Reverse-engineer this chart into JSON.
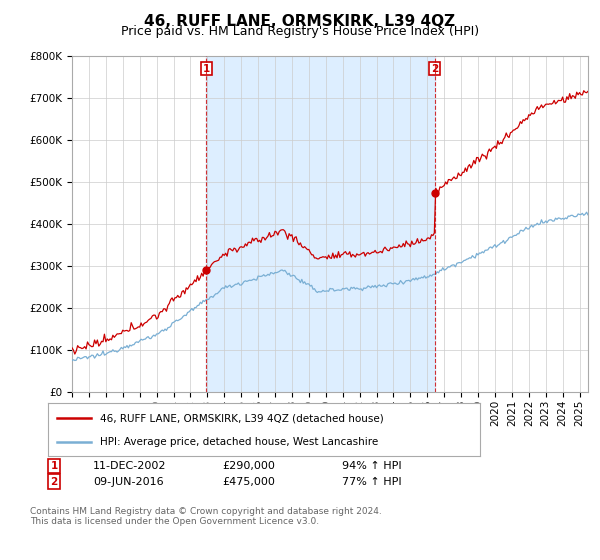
{
  "title": "46, RUFF LANE, ORMSKIRK, L39 4QZ",
  "subtitle": "Price paid vs. HM Land Registry's House Price Index (HPI)",
  "legend_property": "46, RUFF LANE, ORMSKIRK, L39 4QZ (detached house)",
  "legend_hpi": "HPI: Average price, detached house, West Lancashire",
  "transaction1_date": "11-DEC-2002",
  "transaction1_price": 290000,
  "transaction1_hpi": "94% ↑ HPI",
  "transaction1_year": 2002.94,
  "transaction2_date": "09-JUN-2016",
  "transaction2_price": 475000,
  "transaction2_hpi": "77% ↑ HPI",
  "transaction2_year": 2016.44,
  "footer": "Contains HM Land Registry data © Crown copyright and database right 2024.\nThis data is licensed under the Open Government Licence v3.0.",
  "ylim": [
    0,
    800000
  ],
  "xlim_start": 1995.0,
  "xlim_end": 2025.5,
  "red_color": "#cc0000",
  "blue_color": "#7aafd4",
  "shade_color": "#ddeeff",
  "dashed_color": "#cc0000",
  "background": "#ffffff",
  "grid_color": "#cccccc",
  "title_fontsize": 11,
  "subtitle_fontsize": 9,
  "tick_fontsize": 7.5,
  "label_fontsize": 8
}
